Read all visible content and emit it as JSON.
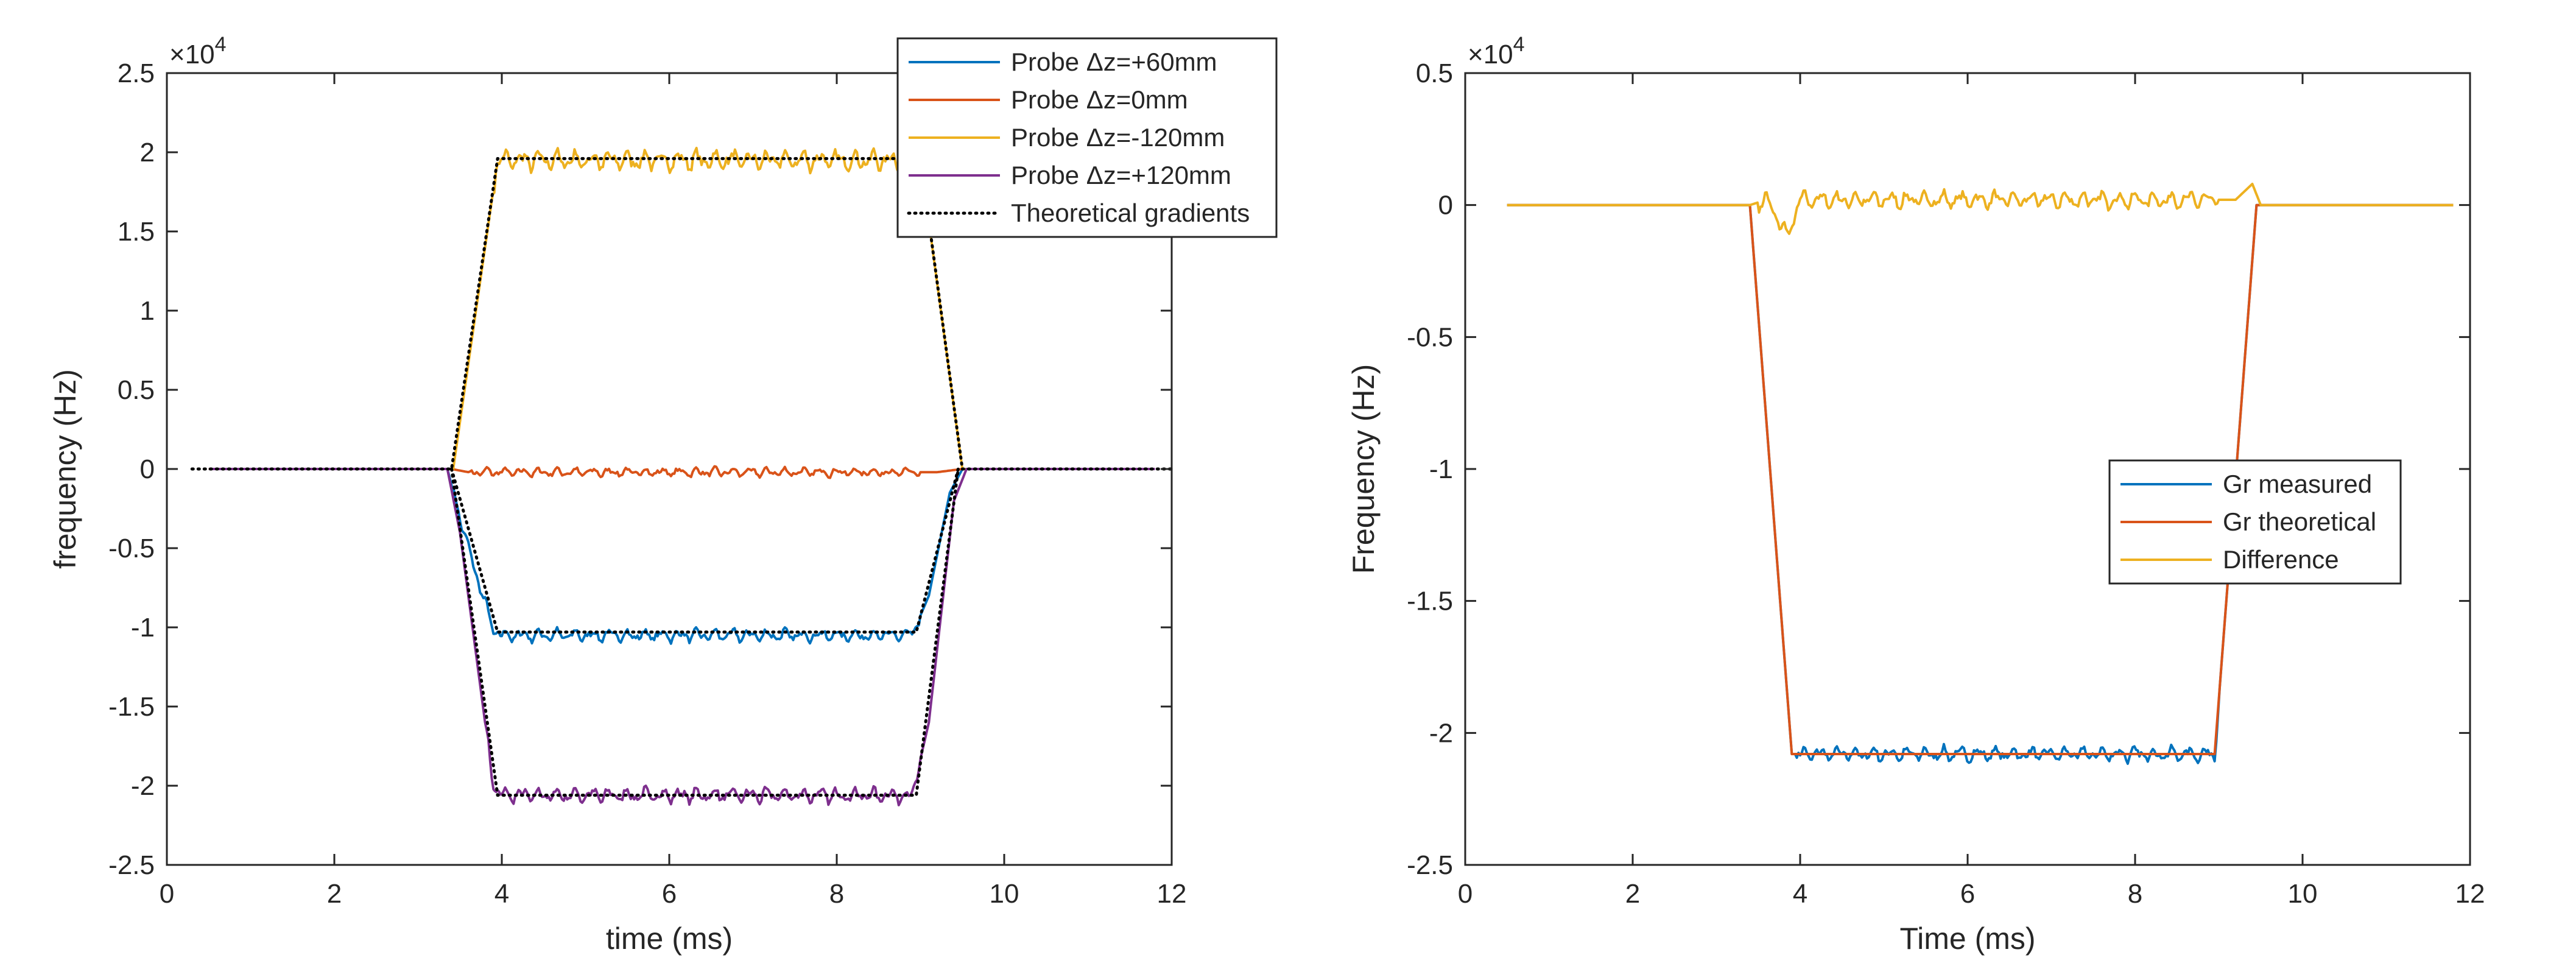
{
  "chart_data": [
    {
      "type": "line",
      "title": "",
      "xlabel": "time (ms)",
      "ylabel": "frequency (Hz)",
      "exponent_label": "×10",
      "exponent_power": "4",
      "xlim": [
        0,
        12
      ],
      "ylim": [
        -2.5,
        2.5
      ],
      "y_scale": 10000,
      "xticks": [
        0,
        2,
        4,
        6,
        8,
        10,
        12
      ],
      "yticks": [
        -2.5,
        -2,
        -1.5,
        -1,
        -0.5,
        0,
        0.5,
        1,
        1.5,
        2,
        2.5
      ],
      "xtick_labels": [
        "0",
        "2",
        "4",
        "6",
        "8",
        "10",
        "12"
      ],
      "ytick_labels": [
        "-2.5",
        "-2",
        "-1.5",
        "-1",
        "-0.5",
        "0",
        "0.5",
        "1",
        "1.5",
        "2",
        "2.5"
      ],
      "legend_position": "top-right",
      "series": [
        {
          "name": "Probe Δz=+60mm",
          "color": "#0072BD",
          "style": "solid",
          "ripple": 0.05,
          "rippleStart": 3.4,
          "points": [
            [
              0.5,
              0
            ],
            [
              3.35,
              0
            ],
            [
              3.6,
              -0.5
            ],
            [
              3.9,
              -1.02
            ],
            [
              4.0,
              -1.05
            ],
            [
              8.9,
              -1.05
            ],
            [
              9.1,
              -0.8
            ],
            [
              9.35,
              -0.15
            ],
            [
              9.5,
              0
            ],
            [
              11.8,
              0
            ]
          ]
        },
        {
          "name": "Probe Δz=0mm",
          "color": "#D95319",
          "style": "solid",
          "ripple": 0.035,
          "rippleStart": 3.6,
          "points": [
            [
              0.5,
              0
            ],
            [
              3.4,
              0
            ],
            [
              3.6,
              -0.02
            ],
            [
              9.2,
              -0.02
            ],
            [
              9.5,
              0
            ],
            [
              11.8,
              0
            ]
          ]
        },
        {
          "name": "Probe Δz=-120mm",
          "color": "#EDB120",
          "style": "solid",
          "ripple": 0.08,
          "rippleStart": 3.9,
          "points": [
            [
              0.5,
              0
            ],
            [
              3.42,
              0
            ],
            [
              3.95,
              1.95
            ],
            [
              9.0,
              1.95
            ],
            [
              9.5,
              0
            ],
            [
              11.8,
              0
            ]
          ]
        },
        {
          "name": "Probe Δz=+120mm",
          "color": "#7E2F8E",
          "style": "solid",
          "ripple": 0.06,
          "rippleStart": 3.8,
          "points": [
            [
              0.5,
              0
            ],
            [
              3.35,
              0
            ],
            [
              3.5,
              -0.4
            ],
            [
              3.9,
              -2.0
            ],
            [
              4.0,
              -2.06
            ],
            [
              8.9,
              -2.06
            ],
            [
              9.1,
              -1.6
            ],
            [
              9.4,
              -0.2
            ],
            [
              9.55,
              0
            ],
            [
              11.8,
              0
            ]
          ]
        },
        {
          "name": "Theoretical gradients",
          "color": "#000000",
          "style": "dotted",
          "ripple": 0,
          "points": [
            [
              0.3,
              0
            ],
            [
              3.4,
              0
            ],
            [
              3.95,
              1.96
            ],
            [
              9.0,
              1.96
            ],
            [
              9.5,
              0
            ],
            [
              12,
              0
            ]
          ]
        },
        {
          "name": "",
          "color": "#000000",
          "style": "dotted",
          "ripple": 0,
          "points": [
            [
              3.4,
              0
            ],
            [
              3.95,
              -1.03
            ],
            [
              8.95,
              -1.03
            ],
            [
              9.45,
              0
            ]
          ]
        },
        {
          "name": "",
          "color": "#000000",
          "style": "dotted",
          "ripple": 0,
          "points": [
            [
              3.4,
              0
            ],
            [
              3.95,
              -2.06
            ],
            [
              8.95,
              -2.06
            ],
            [
              9.45,
              0
            ]
          ]
        }
      ]
    },
    {
      "type": "line",
      "title": "",
      "xlabel": "Time (ms)",
      "ylabel": "Frequency (Hz)",
      "exponent_label": "×10",
      "exponent_power": "4",
      "xlim": [
        0,
        12
      ],
      "ylim": [
        -2.5,
        0.5
      ],
      "y_scale": 10000,
      "xticks": [
        0,
        2,
        4,
        6,
        8,
        10,
        12
      ],
      "yticks": [
        -2.5,
        -2,
        -1.5,
        -1,
        -0.5,
        0,
        0.5
      ],
      "xtick_labels": [
        "0",
        "2",
        "4",
        "6",
        "8",
        "10",
        "12"
      ],
      "ytick_labels": [
        "-2.5",
        "-2",
        "-1.5",
        "-1",
        "-0.5",
        "0",
        "0.5"
      ],
      "legend_position": "right",
      "series": [
        {
          "name": "Gr measured",
          "color": "#0072BD",
          "style": "solid",
          "ripple": 0.035,
          "rippleStart": 3.95,
          "points": [
            [
              0.5,
              0
            ],
            [
              3.4,
              0
            ],
            [
              3.9,
              -2.08
            ],
            [
              8.95,
              -2.08
            ],
            [
              9.45,
              0
            ],
            [
              11.8,
              0
            ]
          ]
        },
        {
          "name": "Gr theoretical",
          "color": "#D95319",
          "style": "solid",
          "ripple": 0,
          "points": [
            [
              0.5,
              0
            ],
            [
              3.4,
              0
            ],
            [
              3.9,
              -2.08
            ],
            [
              8.95,
              -2.08
            ],
            [
              9.45,
              0
            ],
            [
              11.8,
              0
            ]
          ]
        },
        {
          "name": "Difference",
          "color": "#EDB120",
          "style": "solid",
          "ripple": 0.04,
          "rippleStart": 3.5,
          "points": [
            [
              0.5,
              0
            ],
            [
              3.4,
              0
            ],
            [
              3.6,
              0.02
            ],
            [
              3.85,
              -0.12
            ],
            [
              4.0,
              0.02
            ],
            [
              9.2,
              0.02
            ],
            [
              9.4,
              0.08
            ],
            [
              9.5,
              0
            ],
            [
              11.8,
              0
            ]
          ]
        }
      ]
    }
  ]
}
